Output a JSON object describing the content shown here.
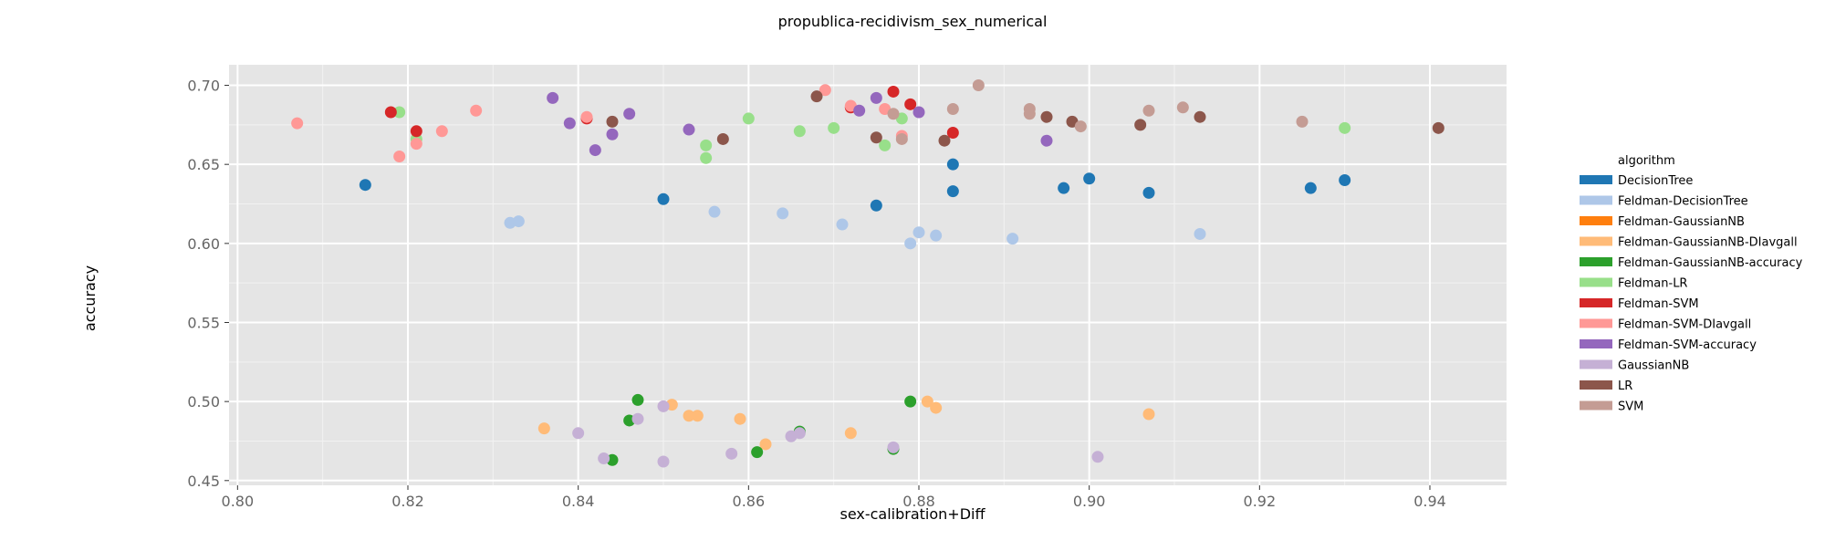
{
  "chart_data": {
    "type": "scatter",
    "title": "propublica-recidivism_sex_numerical",
    "xlabel": "sex-calibration+Diff",
    "ylabel": "accuracy",
    "xlim": [
      0.799,
      0.949
    ],
    "ylim": [
      0.447,
      0.713
    ],
    "x_ticks": [
      0.8,
      0.82,
      0.84,
      0.86,
      0.88,
      0.9,
      0.92,
      0.94
    ],
    "x_tick_labels": [
      "0.80",
      "0.82",
      "0.84",
      "0.86",
      "0.88",
      "0.90",
      "0.92",
      "0.94"
    ],
    "y_ticks": [
      0.45,
      0.5,
      0.55,
      0.6,
      0.65,
      0.7
    ],
    "y_tick_labels": [
      "0.45",
      "0.50",
      "0.55",
      "0.60",
      "0.65",
      "0.70"
    ],
    "grid": true,
    "legend_title": "algorithm",
    "legend_position": "right",
    "series": [
      {
        "name": "DecisionTree",
        "color": "#1f77b4",
        "x": [
          0.815,
          0.85,
          0.875,
          0.884,
          0.884,
          0.897,
          0.9,
          0.907,
          0.926,
          0.93
        ],
        "y": [
          0.637,
          0.628,
          0.624,
          0.65,
          0.633,
          0.635,
          0.641,
          0.632,
          0.635,
          0.64
        ]
      },
      {
        "name": "Feldman-DecisionTree",
        "color": "#aec7e8",
        "x": [
          0.832,
          0.833,
          0.856,
          0.864,
          0.871,
          0.879,
          0.88,
          0.882,
          0.891,
          0.913
        ],
        "y": [
          0.613,
          0.614,
          0.62,
          0.619,
          0.612,
          0.6,
          0.607,
          0.605,
          0.603,
          0.606
        ]
      },
      {
        "name": "Feldman-GaussianNB",
        "color": "#ff7f0e",
        "x": [],
        "y": []
      },
      {
        "name": "Feldman-GaussianNB-DIavgall",
        "color": "#ffbb78",
        "x": [
          0.836,
          0.851,
          0.853,
          0.854,
          0.859,
          0.862,
          0.872,
          0.881,
          0.882,
          0.907
        ],
        "y": [
          0.483,
          0.498,
          0.491,
          0.491,
          0.489,
          0.473,
          0.48,
          0.5,
          0.496,
          0.492
        ]
      },
      {
        "name": "Feldman-GaussianNB-accuracy",
        "color": "#2ca02c",
        "x": [
          0.844,
          0.846,
          0.847,
          0.861,
          0.866,
          0.877,
          0.879
        ],
        "y": [
          0.463,
          0.488,
          0.501,
          0.468,
          0.481,
          0.47,
          0.5
        ]
      },
      {
        "name": "Feldman-LR",
        "color": "#98df8a",
        "x": [
          0.819,
          0.821,
          0.855,
          0.855,
          0.86,
          0.866,
          0.87,
          0.876,
          0.878,
          0.93
        ],
        "y": [
          0.683,
          0.666,
          0.654,
          0.662,
          0.679,
          0.671,
          0.673,
          0.662,
          0.679,
          0.673
        ]
      },
      {
        "name": "Feldman-SVM",
        "color": "#d62728",
        "x": [
          0.818,
          0.821,
          0.841,
          0.872,
          0.877,
          0.879,
          0.884
        ],
        "y": [
          0.683,
          0.671,
          0.679,
          0.686,
          0.696,
          0.688,
          0.67
        ]
      },
      {
        "name": "Feldman-SVM-DIavgall",
        "color": "#ff9896",
        "x": [
          0.807,
          0.819,
          0.821,
          0.824,
          0.828,
          0.841,
          0.869,
          0.872,
          0.876,
          0.878
        ],
        "y": [
          0.676,
          0.655,
          0.663,
          0.671,
          0.684,
          0.68,
          0.697,
          0.687,
          0.685,
          0.668
        ]
      },
      {
        "name": "Feldman-SVM-accuracy",
        "color": "#9467bd",
        "x": [
          0.837,
          0.839,
          0.842,
          0.844,
          0.846,
          0.853,
          0.873,
          0.875,
          0.88,
          0.895
        ],
        "y": [
          0.692,
          0.676,
          0.659,
          0.669,
          0.682,
          0.672,
          0.684,
          0.692,
          0.683,
          0.665
        ]
      },
      {
        "name": "GaussianNB",
        "color": "#c5b0d5",
        "x": [
          0.84,
          0.843,
          0.847,
          0.85,
          0.85,
          0.858,
          0.865,
          0.866,
          0.877,
          0.901
        ],
        "y": [
          0.48,
          0.464,
          0.489,
          0.497,
          0.462,
          0.467,
          0.478,
          0.48,
          0.471,
          0.465
        ]
      },
      {
        "name": "LR",
        "color": "#8c564b",
        "x": [
          0.844,
          0.857,
          0.868,
          0.875,
          0.883,
          0.895,
          0.898,
          0.906,
          0.913,
          0.941
        ],
        "y": [
          0.677,
          0.666,
          0.693,
          0.667,
          0.665,
          0.68,
          0.677,
          0.675,
          0.68,
          0.673
        ]
      },
      {
        "name": "SVM",
        "color": "#c49c94",
        "x": [
          0.877,
          0.878,
          0.884,
          0.887,
          0.893,
          0.893,
          0.899,
          0.907,
          0.911,
          0.925
        ],
        "y": [
          0.682,
          0.666,
          0.685,
          0.7,
          0.685,
          0.682,
          0.674,
          0.684,
          0.686,
          0.677
        ]
      }
    ]
  }
}
